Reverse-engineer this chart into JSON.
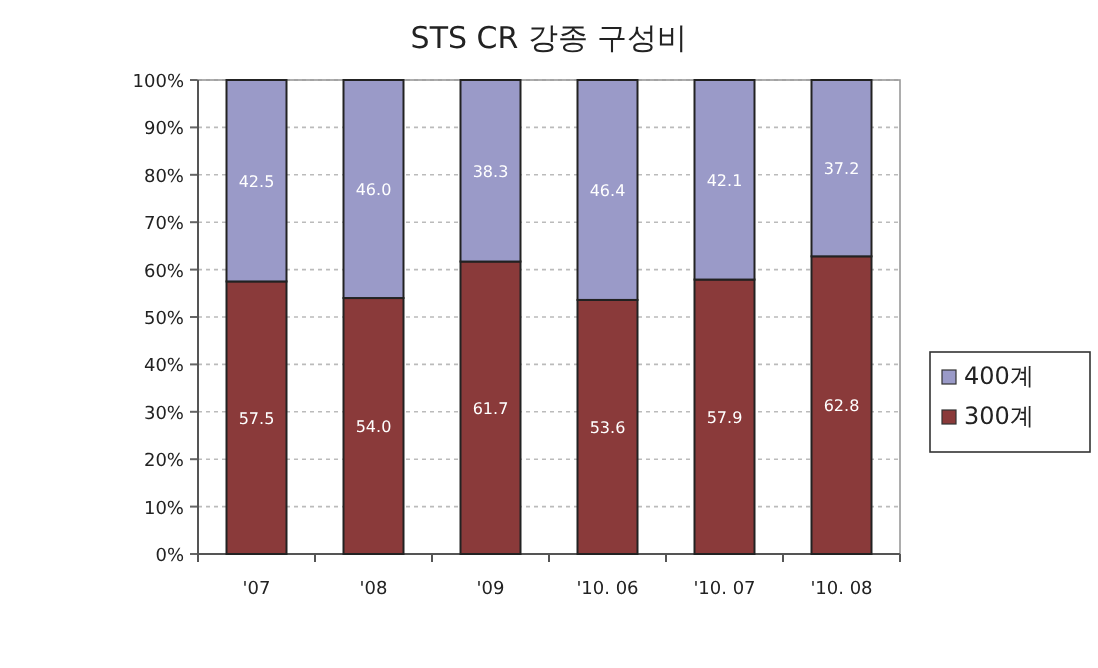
{
  "chart_data": {
    "type": "bar",
    "title": "STS CR 강종 구성비",
    "stacked": true,
    "categories": [
      "'07",
      "'08",
      "'09",
      "'10. 06",
      "'10. 07",
      "'10. 08"
    ],
    "series": [
      {
        "name": "300계",
        "color": "#8a3a3a",
        "values": [
          57.5,
          54.0,
          61.7,
          53.6,
          57.9,
          62.8
        ],
        "value_labels": [
          "57.5",
          "54.0",
          "61.7",
          "53.6",
          "57.9",
          "62.8"
        ]
      },
      {
        "name": "400계",
        "color": "#9a9ac8",
        "values": [
          42.5,
          46.0,
          38.3,
          46.4,
          42.1,
          37.2
        ],
        "value_labels": [
          "42.5",
          "46.0",
          "38.3",
          "46.4",
          "42.1",
          "37.2"
        ]
      }
    ],
    "ylim": [
      0,
      100
    ],
    "yticks": [
      {
        "value": 0,
        "label": "0%"
      },
      {
        "value": 10,
        "label": "10%"
      },
      {
        "value": 20,
        "label": "20%"
      },
      {
        "value": 30,
        "label": "30%"
      },
      {
        "value": 40,
        "label": "40%"
      },
      {
        "value": 50,
        "label": "50%"
      },
      {
        "value": 60,
        "label": "60%"
      },
      {
        "value": 70,
        "label": "70%"
      },
      {
        "value": 80,
        "label": "80%"
      },
      {
        "value": 90,
        "label": "90%"
      },
      {
        "value": 100,
        "label": "100%"
      }
    ],
    "grid": "y",
    "legend": "right"
  }
}
